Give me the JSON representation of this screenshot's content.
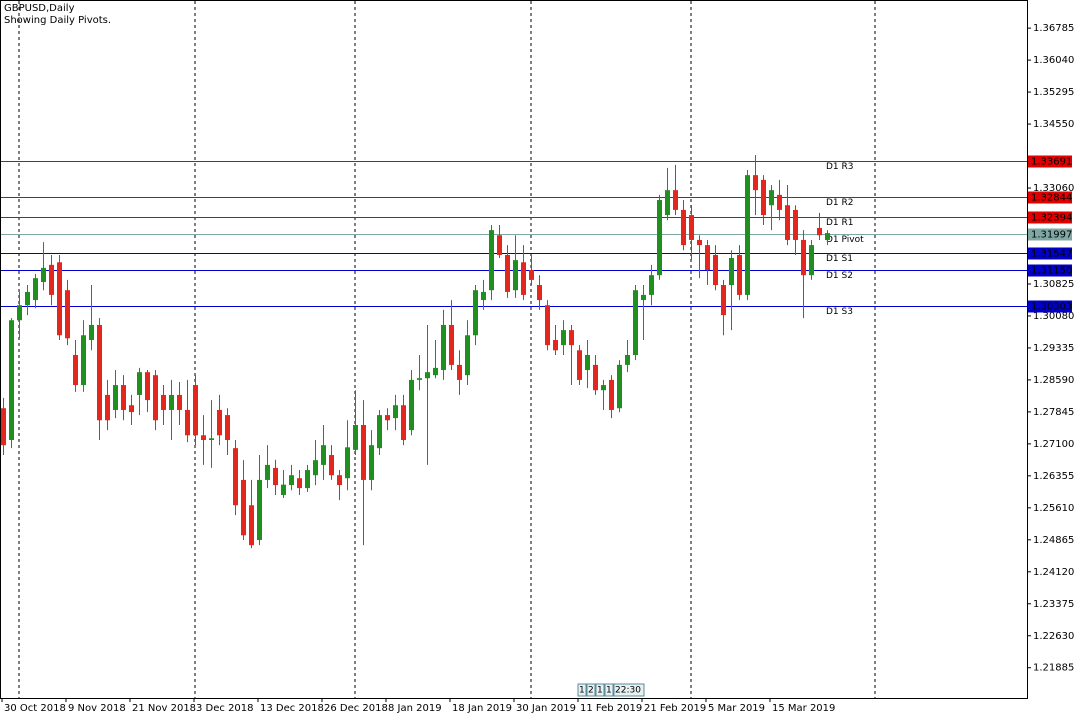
{
  "chart_data": {
    "type": "candlestick",
    "title": "GBPUSD,Daily",
    "subtitle": "Showing Daily Pivots.",
    "categories": [
      "30 Oct 2018",
      null,
      null,
      null,
      null,
      null,
      null,
      null,
      "9 Nov 2018",
      null,
      null,
      null,
      null,
      null,
      null,
      null,
      "21 Nov 2018",
      null,
      null,
      null,
      null,
      null,
      null,
      null,
      "3 Dec 2018",
      null,
      null,
      null,
      null,
      null,
      null,
      null,
      "13 Dec 2018",
      null,
      null,
      null,
      null,
      null,
      null,
      null,
      "26 Dec 2018",
      null,
      null,
      null,
      null,
      null,
      null,
      null,
      "8 Jan 2019",
      null,
      null,
      null,
      null,
      null,
      null,
      null,
      "18 Jan 2019",
      null,
      null,
      null,
      null,
      null,
      null,
      null,
      "30 Jan 2019",
      null,
      null,
      null,
      null,
      null,
      null,
      null,
      "11 Feb 2019",
      null,
      null,
      null,
      null,
      null,
      null,
      null,
      "21 Feb 2019",
      null,
      null,
      null,
      null,
      null,
      null,
      null,
      "5 Mar 2019",
      null,
      null,
      null,
      null,
      null,
      null,
      null,
      "15 Mar 2019",
      null,
      null,
      null,
      null,
      null,
      null,
      null
    ],
    "up_color": "#1f8f1f",
    "down_color": "#e3261e",
    "open": [
      1.2793,
      1.2719,
      1.2998,
      1.3033,
      1.3045,
      1.3087,
      1.3127,
      1.3133,
      1.3068,
      1.2917,
      1.2847,
      1.2952,
      1.2987,
      1.2824,
      1.2789,
      1.2847,
      1.28,
      1.2824,
      1.2877,
      1.287,
      1.2824,
      1.2789,
      1.2824,
      1.2789,
      1.2847,
      1.273,
      1.2719,
      1.2789,
      1.2777,
      1.27,
      1.2626,
      1.2567,
      1.2486,
      1.2626,
      1.2654,
      1.2591,
      1.2614,
      1.263,
      1.2607,
      1.2637,
      1.2661,
      1.2684,
      1.2637,
      1.263,
      1.2696,
      1.2754,
      1.2626,
      1.27,
      1.2777,
      1.277,
      1.28,
      1.2742,
      1.2859,
      1.2863,
      1.287,
      1.2882,
      1.2987,
      1.2894,
      1.287,
      1.2963,
      1.3045,
      1.3068,
      1.3196,
      1.315,
      1.3068,
      1.3133,
      1.3115,
      1.308,
      1.3033,
      1.2952,
      1.294,
      1.2975,
      1.2928,
      1.2882,
      1.2894,
      1.2835,
      1.2859,
      1.2793,
      1.2894,
      1.2917,
      1.3045,
      1.3057,
      1.3103,
      1.3243,
      1.3301,
      1.3255,
      1.3243,
      1.3185,
      1.3173,
      1.315,
      1.308,
      1.308,
      1.315,
      1.3057,
      1.3336,
      1.3325,
      1.3266,
      1.329,
      1.3266,
      1.3255,
      1.3185,
      1.3103,
      1.3213,
      1.3185
    ],
    "high": [
      1.2817,
      1.3003,
      1.3064,
      1.308,
      1.3106,
      1.318,
      1.315,
      1.315,
      1.3092,
      1.2952,
      1.2998,
      1.308,
      1.3003,
      1.2859,
      1.2882,
      1.287,
      1.2824,
      1.2887,
      1.2882,
      1.2882,
      1.2847,
      1.2859,
      1.2854,
      1.2859,
      1.287,
      1.2777,
      1.2812,
      1.2824,
      1.2793,
      1.2719,
      1.2672,
      1.2626,
      1.2684,
      1.2707,
      1.2673,
      1.2649,
      1.2661,
      1.2649,
      1.2661,
      1.2719,
      1.2754,
      1.2707,
      1.2649,
      1.2765,
      1.2835,
      1.2812,
      1.2742,
      1.2789,
      1.2793,
      1.2824,
      1.2824,
      1.2882,
      1.2917,
      1.2987,
      1.2952,
      1.3022,
      1.3045,
      1.2928,
      1.2998,
      1.308,
      1.3092,
      1.322,
      1.322,
      1.3173,
      1.3196,
      1.3173,
      1.315,
      1.3103,
      1.3045,
      1.2987,
      1.2998,
      1.2987,
      1.294,
      1.2952,
      1.2917,
      1.2859,
      1.287,
      1.2905,
      1.2952,
      1.308,
      1.308,
      1.3127,
      1.329,
      1.3353,
      1.336,
      1.3278,
      1.3266,
      1.3196,
      1.3185,
      1.3173,
      1.3092,
      1.3161,
      1.3173,
      1.3348,
      1.3383,
      1.3336,
      1.3313,
      1.3325,
      1.3313,
      1.3266,
      1.3208,
      1.3185,
      1.3248,
      1.3208
    ],
    "low": [
      1.2684,
      1.27,
      1.2956,
      1.301,
      1.3026,
      1.3068,
      1.3033,
      1.2952,
      1.294,
      1.2831,
      1.2831,
      1.2928,
      1.2719,
      1.2742,
      1.277,
      1.2765,
      1.2754,
      1.2777,
      1.2784,
      1.2742,
      1.2754,
      1.2719,
      1.2754,
      1.2714,
      1.2707,
      1.2661,
      1.2654,
      1.2707,
      1.2684,
      1.2544,
      1.2486,
      1.2467,
      1.2474,
      1.2607,
      1.2591,
      1.2584,
      1.2602,
      1.2591,
      1.2598,
      1.2614,
      1.2626,
      1.2626,
      1.2579,
      1.2602,
      1.2684,
      1.2474,
      1.2602,
      1.2684,
      1.2742,
      1.2742,
      1.2707,
      1.273,
      1.2835,
      1.2661,
      1.2863,
      1.2859,
      1.2882,
      1.2824,
      1.2847,
      1.294,
      1.3022,
      1.3045,
      1.3143,
      1.305,
      1.305,
      1.3045,
      1.308,
      1.3022,
      1.2928,
      1.2917,
      1.2917,
      1.2847,
      1.2847,
      1.284,
      1.2824,
      1.2789,
      1.277,
      1.2784,
      1.2877,
      1.2905,
      1.2952,
      1.3033,
      1.3092,
      1.3231,
      1.3243,
      1.3161,
      1.3138,
      1.3096,
      1.308,
      1.3068,
      1.2963,
      1.2975,
      1.3045,
      1.3045,
      1.3243,
      1.322,
      1.3208,
      1.3231,
      1.3173,
      1.315,
      1.3003,
      1.3092,
      1.3185,
      1.3173
    ],
    "close": [
      1.2707,
      1.2998,
      1.3033,
      1.3064,
      1.3096,
      1.312,
      1.3057,
      1.2963,
      1.2956,
      1.2847,
      1.2963,
      1.2987,
      1.2765,
      1.2765,
      1.2847,
      1.2789,
      1.2784,
      1.2877,
      1.2812,
      1.2765,
      1.2789,
      1.2824,
      1.2789,
      1.273,
      1.273,
      1.2719,
      1.2723,
      1.273,
      1.2719,
      1.2567,
      1.2497,
      1.2474,
      1.2626,
      1.2661,
      1.2614,
      1.2615,
      1.2637,
      1.2607,
      1.2649,
      1.2672,
      1.2707,
      1.2637,
      1.2614,
      1.2702,
      1.2754,
      1.2626,
      1.2707,
      1.2777,
      1.2765,
      1.28,
      1.2719,
      1.2859,
      1.2863,
      1.2877,
      1.2887,
      1.2987,
      1.2894,
      1.2859,
      1.2963,
      1.3068,
      1.3064,
      1.3208,
      1.315,
      1.3064,
      1.3138,
      1.3057,
      1.3092,
      1.3045,
      1.294,
      1.2928,
      1.2975,
      1.294,
      1.2859,
      1.2917,
      1.2835,
      1.2847,
      1.2789,
      1.2894,
      1.2917,
      1.3068,
      1.3057,
      1.3103,
      1.3278,
      1.3301,
      1.3255,
      1.3173,
      1.3185,
      1.3173,
      1.3115,
      1.308,
      1.301,
      1.3143,
      1.3057,
      1.3336,
      1.3301,
      1.3243,
      1.3301,
      1.3255,
      1.3185,
      1.3185,
      1.3103,
      1.3173,
      1.3196,
      1.3201
    ],
    "ylim": [
      1.2118,
      1.3744
    ],
    "yticks": [
      1.36785,
      {
        "value": 1.3604,
        "label": "1.36040"
      },
      1.35295,
      {
        "value": 1.3455,
        "label": "1.34550"
      },
      {
        "value": 1.3306,
        "label": "1.33060"
      },
      1.30825,
      {
        "value": 1.3008,
        "label": "1.30080"
      },
      1.29335,
      {
        "value": 1.2859,
        "label": "1.28590"
      },
      1.27845,
      {
        "value": 1.271,
        "label": "1.27100"
      },
      1.26355,
      {
        "value": 1.2561,
        "label": "1.25610"
      },
      1.24865,
      {
        "value": 1.2412,
        "label": "1.24120"
      },
      1.23375,
      {
        "value": 1.2263,
        "label": "1.22630"
      },
      1.21885
    ],
    "pivots": [
      {
        "name": "D1 R3",
        "value": 1.33691,
        "color": "#e00000"
      },
      {
        "name": "D1 R2",
        "value": 1.32844,
        "color": "#e00000"
      },
      {
        "name": "D1 R1",
        "value": 1.32394,
        "color": "#e00000"
      },
      {
        "name": "D1 Pivot",
        "value": 1.31997,
        "color": "#7fa8a4"
      },
      {
        "name": "D1 S1",
        "value": 1.31547,
        "color": "#0000c8"
      },
      {
        "name": "D1 S2",
        "value": 1.3115,
        "value_label": "1.31150",
        "color": "#0000c8"
      },
      {
        "name": "D1 S3",
        "value": 1.30303,
        "color": "#0000c8"
      }
    ],
    "status_boxes": [
      "1",
      "2",
      "1",
      "1",
      "22:30"
    ]
  }
}
